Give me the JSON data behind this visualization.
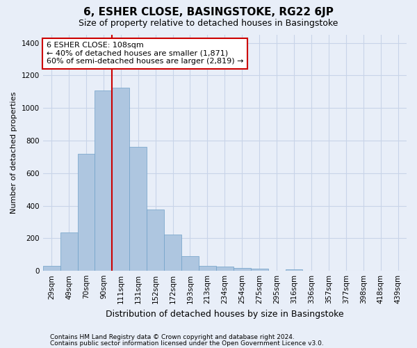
{
  "title": "6, ESHER CLOSE, BASINGSTOKE, RG22 6JP",
  "subtitle": "Size of property relative to detached houses in Basingstoke",
  "xlabel": "Distribution of detached houses by size in Basingstoke",
  "ylabel": "Number of detached properties",
  "footer_line1": "Contains HM Land Registry data © Crown copyright and database right 2024.",
  "footer_line2": "Contains public sector information licensed under the Open Government Licence v3.0.",
  "bar_labels": [
    "29sqm",
    "49sqm",
    "70sqm",
    "90sqm",
    "111sqm",
    "131sqm",
    "152sqm",
    "172sqm",
    "193sqm",
    "213sqm",
    "234sqm",
    "254sqm",
    "275sqm",
    "295sqm",
    "316sqm",
    "336sqm",
    "357sqm",
    "377sqm",
    "398sqm",
    "418sqm",
    "439sqm"
  ],
  "bar_values": [
    30,
    235,
    720,
    1110,
    1125,
    760,
    375,
    225,
    90,
    30,
    25,
    20,
    15,
    0,
    10,
    0,
    0,
    0,
    0,
    0,
    0
  ],
  "bar_color": "#aec6e0",
  "bar_edgecolor": "#6fa0c8",
  "grid_color": "#c8d4e8",
  "background_color": "#e8eef8",
  "vline_x_index": 4,
  "vline_color": "#cc0000",
  "annotation_text": "6 ESHER CLOSE: 108sqm\n← 40% of detached houses are smaller (1,871)\n60% of semi-detached houses are larger (2,819) →",
  "annotation_box_color": "#cc0000",
  "ylim": [
    0,
    1450
  ],
  "yticks": [
    0,
    200,
    400,
    600,
    800,
    1000,
    1200,
    1400
  ],
  "title_fontsize": 11,
  "subtitle_fontsize": 9,
  "ylabel_fontsize": 8,
  "xlabel_fontsize": 9,
  "tick_fontsize": 7.5,
  "annotation_fontsize": 8,
  "footer_fontsize": 6.5
}
